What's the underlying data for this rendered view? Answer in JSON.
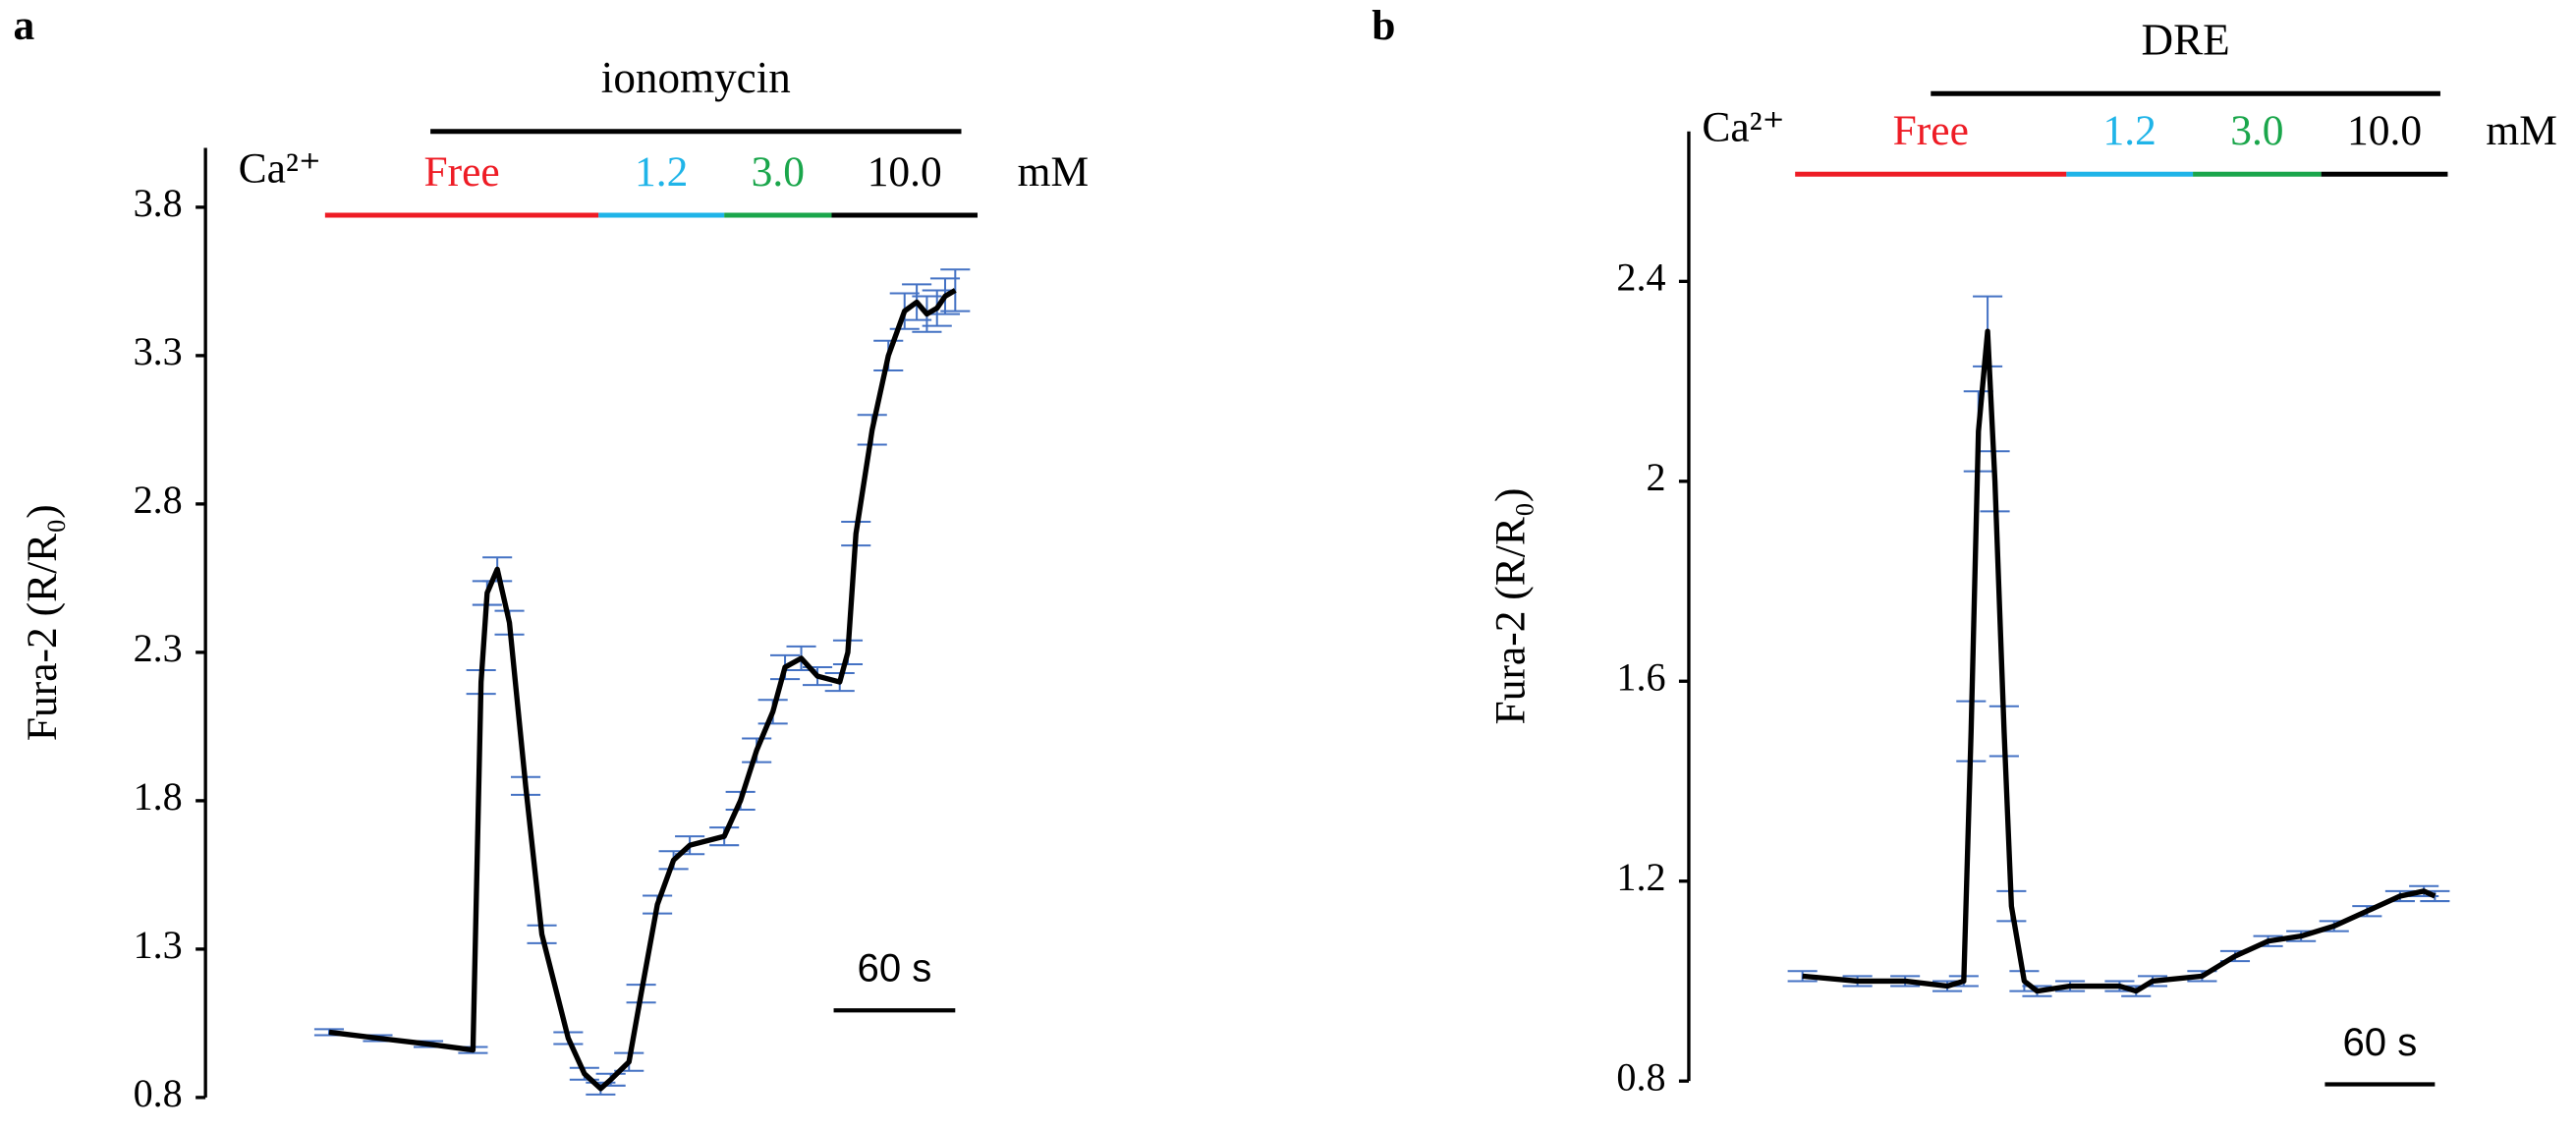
{
  "chart_data": [
    {
      "type": "line",
      "panel": "a",
      "ylabel": "Fura-2 (R/R₀)",
      "ylim": [
        0.8,
        4.0
      ],
      "yticks": [
        0.8,
        1.3,
        1.8,
        2.3,
        2.8,
        3.3,
        3.8
      ],
      "xlim": [
        -61,
        320
      ],
      "x": [
        0,
        24,
        49,
        71,
        75,
        78,
        83,
        89,
        97,
        105,
        118,
        126,
        134,
        139,
        148,
        154,
        162,
        170,
        178,
        195,
        203,
        211,
        219,
        225,
        233,
        241,
        252,
        256,
        260,
        268,
        276,
        284,
        290,
        295,
        300,
        304,
        309
      ],
      "series": [
        {
          "color": "#000000",
          "error_color": "#4472c4",
          "values": [
            1.02,
            1.0,
            0.98,
            0.96,
            2.2,
            2.5,
            2.58,
            2.4,
            1.85,
            1.35,
            1.0,
            0.88,
            0.83,
            0.86,
            0.92,
            1.15,
            1.45,
            1.6,
            1.65,
            1.68,
            1.8,
            1.97,
            2.1,
            2.25,
            2.28,
            2.22,
            2.2,
            2.3,
            2.7,
            3.05,
            3.3,
            3.45,
            3.48,
            3.44,
            3.46,
            3.5,
            3.52
          ],
          "errors": [
            0.01,
            0.01,
            0.01,
            0.01,
            0.04,
            0.04,
            0.04,
            0.04,
            0.03,
            0.03,
            0.02,
            0.02,
            0.02,
            0.02,
            0.03,
            0.03,
            0.03,
            0.03,
            0.03,
            0.03,
            0.03,
            0.04,
            0.04,
            0.04,
            0.04,
            0.03,
            0.03,
            0.04,
            0.04,
            0.05,
            0.05,
            0.06,
            0.06,
            0.06,
            0.06,
            0.06,
            0.07
          ]
        }
      ],
      "treatment": {
        "label": "ionomycin",
        "start": 50,
        "end": 312
      },
      "ion_label": "Ca²⁺",
      "unit": "mM",
      "segments": [
        {
          "label": "Free",
          "color": "#ee1c25",
          "start": -2,
          "end": 133
        },
        {
          "label": "1.2",
          "color": "#1fb4e8",
          "start": 133,
          "end": 195
        },
        {
          "label": "3.0",
          "color": "#1aa64b",
          "start": 195,
          "end": 248
        },
        {
          "label": "10.0",
          "color": "#000000",
          "start": 248,
          "end": 320
        }
      ],
      "scalebar": {
        "label": "60 s",
        "length": 60
      }
    },
    {
      "type": "line",
      "panel": "b",
      "ylabel": "Fura-2 (R/R₀)",
      "ylim": [
        0.8,
        2.7
      ],
      "yticks": [
        0.8,
        1.2,
        1.6,
        2.0,
        2.4
      ],
      "xlim": [
        -62,
        352
      ],
      "x": [
        0,
        30,
        56,
        79,
        88,
        92,
        96,
        101,
        105,
        110,
        114,
        121,
        128,
        146,
        173,
        182,
        191,
        218,
        236,
        254,
        272,
        290,
        308,
        326,
        339,
        345
      ],
      "series": [
        {
          "color": "#000000",
          "error_color": "#4472c4",
          "values": [
            1.01,
            1.0,
            1.0,
            0.99,
            1.0,
            1.5,
            2.1,
            2.3,
            2.0,
            1.5,
            1.15,
            1.0,
            0.98,
            0.99,
            0.99,
            0.98,
            1.0,
            1.01,
            1.05,
            1.08,
            1.09,
            1.11,
            1.14,
            1.17,
            1.18,
            1.17
          ],
          "errors": [
            0.01,
            0.01,
            0.01,
            0.01,
            0.01,
            0.06,
            0.08,
            0.07,
            0.06,
            0.05,
            0.03,
            0.02,
            0.01,
            0.01,
            0.01,
            0.01,
            0.01,
            0.01,
            0.01,
            0.01,
            0.01,
            0.01,
            0.01,
            0.01,
            0.01,
            0.01
          ]
        }
      ],
      "treatment": {
        "label": "DRE",
        "start": 70,
        "end": 348
      },
      "ion_label": "Ca²⁺",
      "unit": "mM",
      "segments": [
        {
          "label": "Free",
          "color": "#ee1c25",
          "start": -4,
          "end": 144
        },
        {
          "label": "1.2",
          "color": "#1fb4e8",
          "start": 144,
          "end": 213
        },
        {
          "label": "3.0",
          "color": "#1aa64b",
          "start": 213,
          "end": 283
        },
        {
          "label": "10.0",
          "color": "#000000",
          "start": 283,
          "end": 352
        }
      ],
      "scalebar": {
        "label": "60 s",
        "length": 60
      }
    }
  ]
}
